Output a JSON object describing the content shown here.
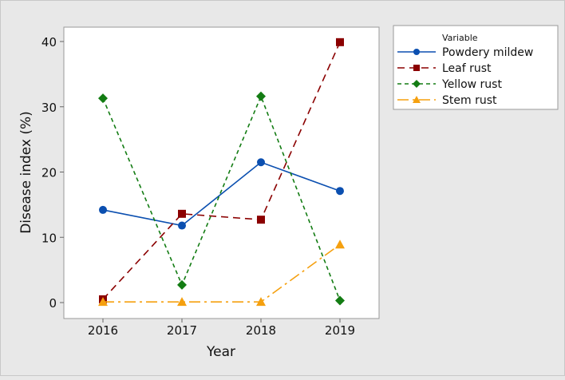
{
  "chart_data": {
    "type": "line",
    "title": "",
    "xlabel": "Year",
    "ylabel": "Disease index (%)",
    "categories": [
      "2016",
      "2017",
      "2018",
      "2019"
    ],
    "yticks": [
      "0",
      "10",
      "20",
      "30",
      "40"
    ],
    "ylim": [
      -2.5,
      42.2
    ],
    "grid": false,
    "legend": {
      "title": "Variable",
      "position": "right"
    },
    "series": [
      {
        "name": "Powdery mildew",
        "values": [
          14.2,
          11.8,
          21.5,
          17.1
        ],
        "color": "#0b4fb0",
        "marker": "circle",
        "dash": "solid"
      },
      {
        "name": "Leaf rust",
        "values": [
          0.5,
          13.6,
          12.7,
          39.9
        ],
        "color": "#8b0000",
        "marker": "square",
        "dash": "long-dash"
      },
      {
        "name": "Yellow rust",
        "values": [
          31.3,
          2.7,
          31.6,
          0.3
        ],
        "color": "#137c13",
        "marker": "diamond",
        "dash": "short-dash"
      },
      {
        "name": "Stem rust",
        "values": [
          0.1,
          0.1,
          0.1,
          8.9
        ],
        "color": "#f5a00f",
        "marker": "triangle",
        "dash": "dash-dot"
      }
    ]
  }
}
